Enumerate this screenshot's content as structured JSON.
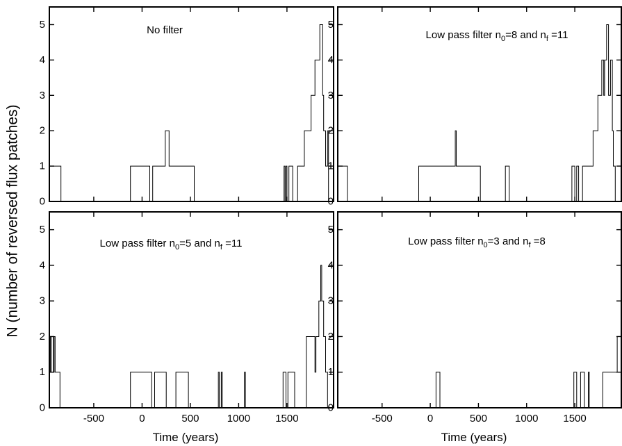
{
  "figure": {
    "ylabel": "N (number of reversed flux patches)",
    "xlabel": "Time (years)"
  },
  "chart_data": [
    {
      "type": "step",
      "title": "No filter",
      "title_parts": [
        "No filter",
        "",
        "",
        "",
        ""
      ],
      "xlim": [
        -960,
        1990
      ],
      "ylim": [
        0,
        5.5
      ],
      "xticks": [
        -500,
        0,
        500,
        1000,
        1500
      ],
      "yticks": [
        0,
        1,
        2,
        3,
        4,
        5
      ],
      "steps": [
        [
          -960,
          1
        ],
        [
          -840,
          0
        ],
        [
          -120,
          1
        ],
        [
          80,
          0
        ],
        [
          110,
          1
        ],
        [
          240,
          2
        ],
        [
          280,
          1
        ],
        [
          540,
          0
        ],
        [
          1470,
          1
        ],
        [
          1480,
          0
        ],
        [
          1490,
          1
        ],
        [
          1500,
          0
        ],
        [
          1520,
          1
        ],
        [
          1560,
          0
        ],
        [
          1610,
          1
        ],
        [
          1680,
          2
        ],
        [
          1720,
          2
        ],
        [
          1750,
          3
        ],
        [
          1790,
          4
        ],
        [
          1840,
          5
        ],
        [
          1870,
          3
        ],
        [
          1880,
          2
        ],
        [
          1900,
          1
        ],
        [
          1920,
          2
        ],
        [
          1930,
          0
        ]
      ]
    },
    {
      "type": "step",
      "title": "Low pass filter n0=8 and nf =11",
      "title_parts": [
        "Low pass filter n",
        "0",
        "=8 and n",
        "f",
        " =11"
      ],
      "xlim": [
        -960,
        1990
      ],
      "ylim": [
        0,
        5.5
      ],
      "xticks": [
        -500,
        0,
        500,
        1000,
        1500
      ],
      "yticks": [
        0,
        1,
        2,
        3,
        4,
        5
      ],
      "steps": [
        [
          -960,
          1
        ],
        [
          -860,
          0
        ],
        [
          -120,
          1
        ],
        [
          260,
          2
        ],
        [
          270,
          1
        ],
        [
          520,
          0
        ],
        [
          780,
          1
        ],
        [
          820,
          0
        ],
        [
          1470,
          1
        ],
        [
          1500,
          0
        ],
        [
          1520,
          1
        ],
        [
          1540,
          0
        ],
        [
          1580,
          1
        ],
        [
          1650,
          1
        ],
        [
          1690,
          2
        ],
        [
          1740,
          3
        ],
        [
          1780,
          4
        ],
        [
          1800,
          3
        ],
        [
          1810,
          4
        ],
        [
          1830,
          5
        ],
        [
          1850,
          3
        ],
        [
          1870,
          4
        ],
        [
          1890,
          2
        ],
        [
          1900,
          1
        ],
        [
          1920,
          0
        ]
      ]
    },
    {
      "type": "step",
      "title": "Low pass filter n0=5 and nf =11",
      "title_parts": [
        "Low pass filter n",
        "0",
        "=5 and n",
        "f",
        " =11"
      ],
      "xlim": [
        -960,
        1990
      ],
      "ylim": [
        0,
        5.5
      ],
      "xticks": [
        -500,
        0,
        500,
        1000,
        1500
      ],
      "yticks": [
        0,
        1,
        2,
        3,
        4,
        5
      ],
      "steps": [
        [
          -960,
          2
        ],
        [
          -950,
          1
        ],
        [
          -940,
          2
        ],
        [
          -920,
          1
        ],
        [
          -910,
          2
        ],
        [
          -900,
          1
        ],
        [
          -850,
          0
        ],
        [
          -120,
          1
        ],
        [
          100,
          0
        ],
        [
          130,
          1
        ],
        [
          250,
          0
        ],
        [
          350,
          1
        ],
        [
          480,
          0
        ],
        [
          790,
          1
        ],
        [
          800,
          0
        ],
        [
          820,
          1
        ],
        [
          830,
          0
        ],
        [
          1060,
          1
        ],
        [
          1070,
          0
        ],
        [
          1460,
          1
        ],
        [
          1490,
          0
        ],
        [
          1510,
          1
        ],
        [
          1580,
          0
        ],
        [
          1700,
          2
        ],
        [
          1790,
          1
        ],
        [
          1800,
          2
        ],
        [
          1830,
          3
        ],
        [
          1850,
          4
        ],
        [
          1860,
          3
        ],
        [
          1880,
          2
        ],
        [
          1900,
          1
        ],
        [
          1920,
          0
        ]
      ]
    },
    {
      "type": "step",
      "title": "Low pass filter n0=3 and nf =8",
      "title_parts": [
        "Low pass filter n",
        "0",
        "=3 and n",
        "f",
        " =8"
      ],
      "xlim": [
        -960,
        1990
      ],
      "ylim": [
        0,
        5.5
      ],
      "xticks": [
        -500,
        0,
        500,
        1000,
        1500
      ],
      "yticks": [
        0,
        1,
        2,
        3,
        4,
        5
      ],
      "steps": [
        [
          -960,
          0
        ],
        [
          60,
          1
        ],
        [
          100,
          0
        ],
        [
          1490,
          1
        ],
        [
          1520,
          0
        ],
        [
          1560,
          1
        ],
        [
          1600,
          0
        ],
        [
          1640,
          1
        ],
        [
          1650,
          0
        ],
        [
          1790,
          1
        ],
        [
          1940,
          2
        ]
      ]
    }
  ]
}
